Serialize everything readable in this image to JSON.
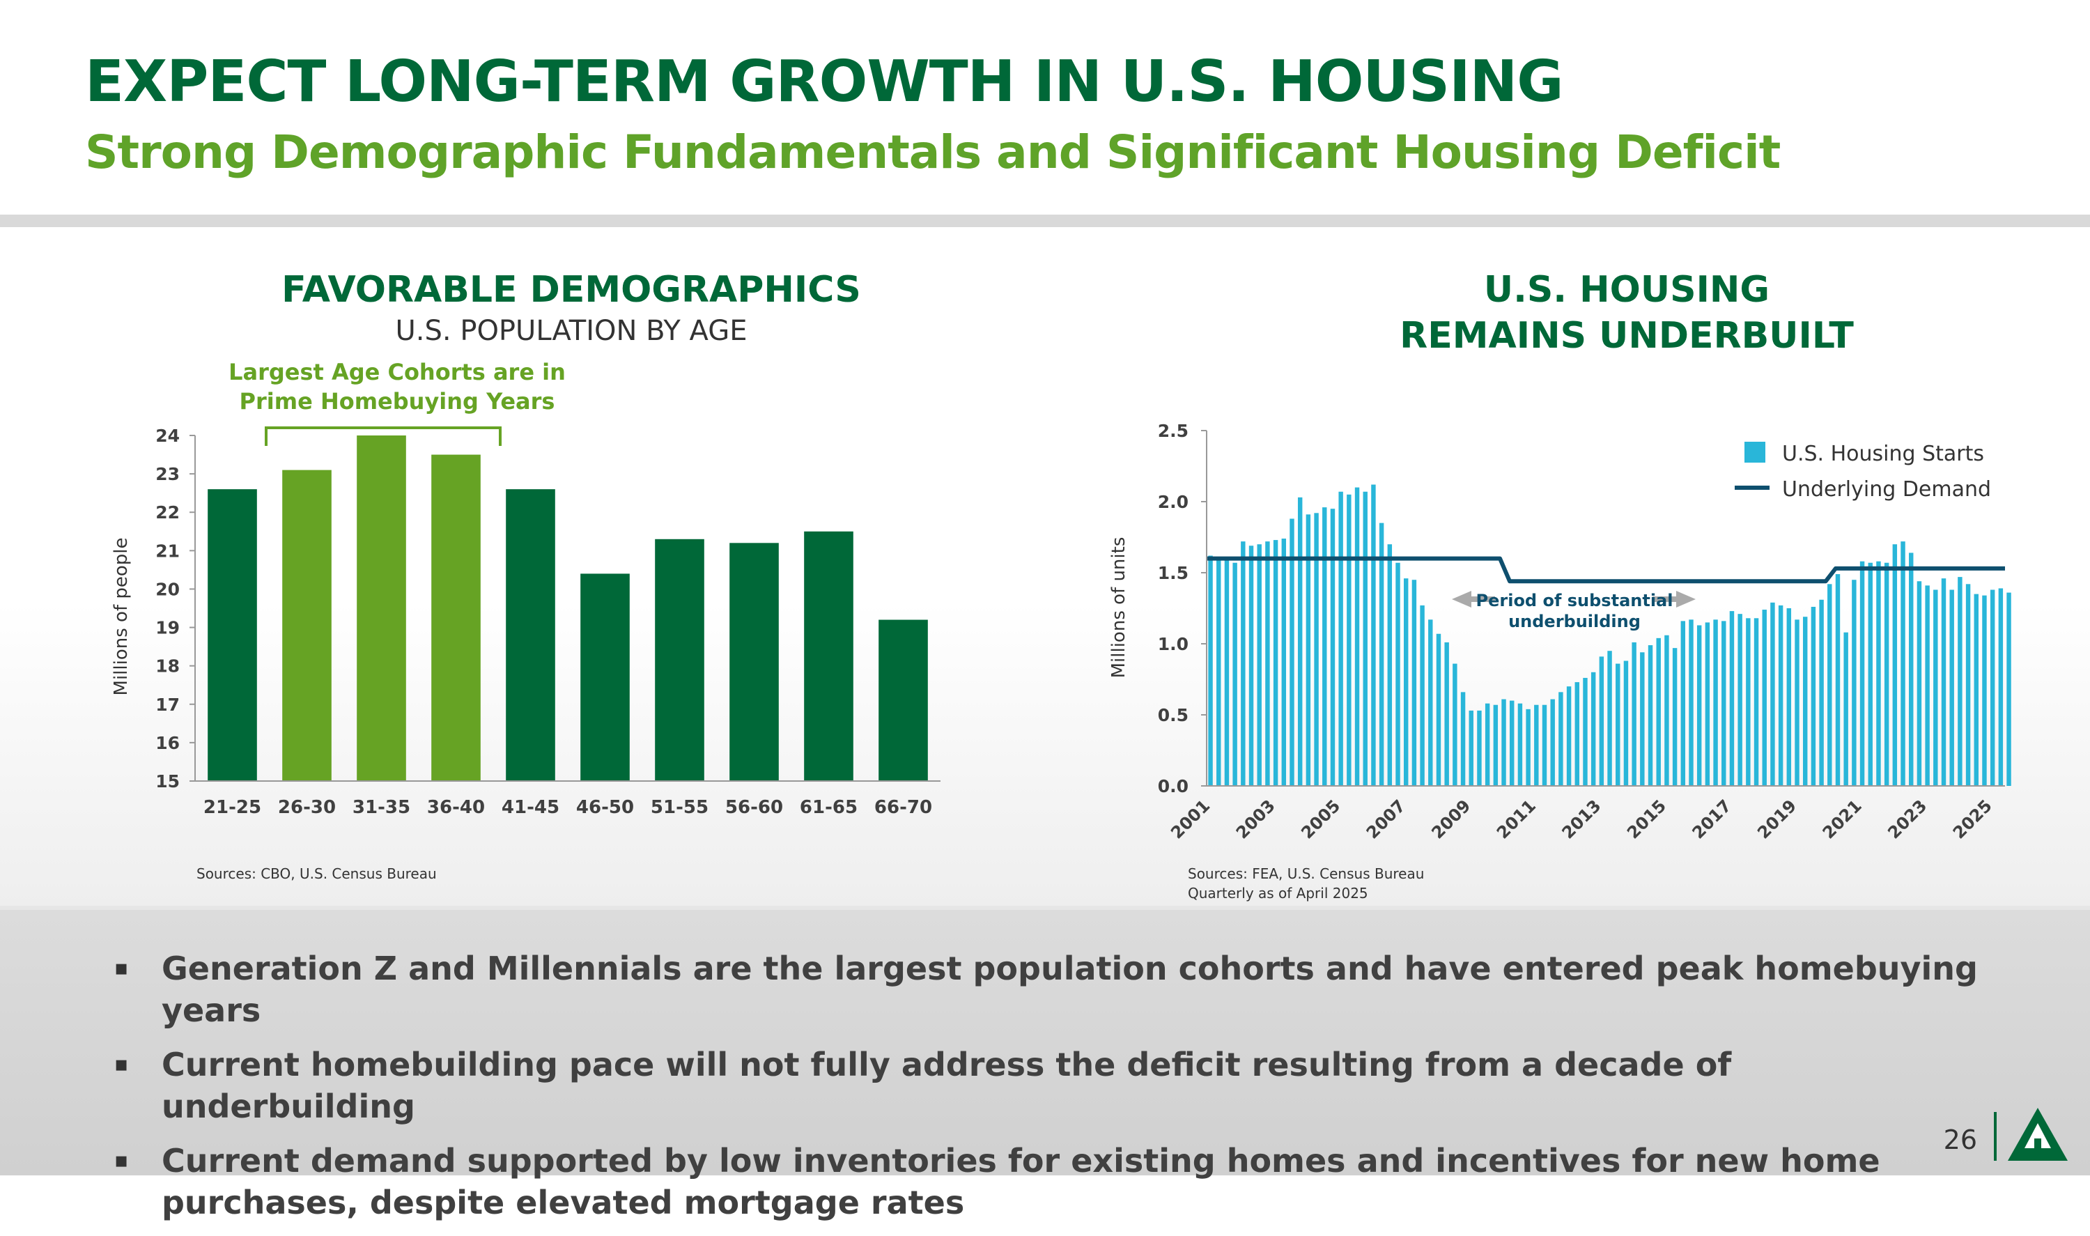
{
  "header": {
    "title": "EXPECT LONG-TERM GROWTH IN U.S. HOUSING",
    "subtitle": "Strong Demographic Fundamentals and Significant Housing Deficit"
  },
  "left_panel": {
    "title": "FAVORABLE DEMOGRAPHICS",
    "subtitle": "U.S. POPULATION BY AGE",
    "annotation_line1": "Largest Age Cohorts are in",
    "annotation_line2": "Prime Homebuying Years",
    "source": "Sources: CBO, U.S. Census Bureau"
  },
  "right_panel": {
    "title_line1": "U.S. HOUSING",
    "title_line2": "REMAINS UNDERBUILT",
    "annotation_line1": "Period of substantial",
    "annotation_line2": "underbuilding",
    "source_line1": "Sources: FEA, U.S. Census Bureau",
    "source_line2": "Quarterly as of April 2025"
  },
  "bullets": [
    "Generation Z and Millennials are the largest population cohorts and have entered peak homebuying years",
    "Current homebuilding pace will not fully address the deficit resulting from a decade of underbuilding",
    "Current demand supported by low inventories for existing homes and incentives for new home purchases, despite elevated mortgage rates"
  ],
  "bullet_marker": "▪",
  "page_number": "26",
  "colors": {
    "dark_green": "#006838",
    "light_green": "#66a324",
    "housing_starts": "#29b6d9",
    "underlying_demand": "#0e4f6e"
  },
  "chart_data": [
    {
      "type": "bar",
      "categories": [
        "21-25",
        "26-30",
        "31-35",
        "36-40",
        "41-45",
        "46-50",
        "51-55",
        "56-60",
        "61-65",
        "66-70"
      ],
      "values": [
        22.6,
        23.1,
        24.0,
        23.5,
        22.6,
        20.4,
        21.3,
        21.2,
        21.5,
        19.2
      ],
      "highlighted": [
        false,
        true,
        true,
        true,
        false,
        false,
        false,
        false,
        false,
        false
      ],
      "ylabel": "Millions of people",
      "ylim": [
        15,
        24
      ],
      "yticks": [
        15,
        16,
        17,
        18,
        19,
        20,
        21,
        22,
        23,
        24
      ]
    },
    {
      "type": "bar",
      "x_start": 2001.0,
      "x_step": 0.25,
      "xlim": [
        2001,
        2025.5
      ],
      "xticks": [
        "2001",
        "2003",
        "2005",
        "2007",
        "2009",
        "2011",
        "2013",
        "2015",
        "2017",
        "2019",
        "2021",
        "2023",
        "2025"
      ],
      "ylabel": "Millions of units",
      "ylim": [
        0.0,
        2.5
      ],
      "yticks": [
        "0.0",
        "0.5",
        "1.0",
        "1.5",
        "2.0",
        "2.5"
      ],
      "legend_position": "top-right",
      "series": [
        {
          "name": "U.S. Housing Starts",
          "type": "bar",
          "values": [
            1.62,
            1.6,
            1.6,
            1.57,
            1.72,
            1.69,
            1.7,
            1.72,
            1.73,
            1.74,
            1.88,
            2.03,
            1.91,
            1.92,
            1.96,
            1.95,
            2.07,
            2.05,
            2.1,
            2.07,
            2.12,
            1.85,
            1.7,
            1.57,
            1.46,
            1.45,
            1.27,
            1.17,
            1.07,
            1.01,
            0.86,
            0.66,
            0.53,
            0.53,
            0.58,
            0.57,
            0.61,
            0.6,
            0.58,
            0.54,
            0.57,
            0.57,
            0.61,
            0.66,
            0.7,
            0.73,
            0.76,
            0.8,
            0.91,
            0.95,
            0.86,
            0.88,
            1.01,
            0.94,
            0.99,
            1.04,
            1.06,
            0.97,
            1.16,
            1.17,
            1.13,
            1.15,
            1.17,
            1.16,
            1.23,
            1.21,
            1.18,
            1.18,
            1.24,
            1.29,
            1.27,
            1.25,
            1.17,
            1.19,
            1.26,
            1.31,
            1.42,
            1.49,
            1.08,
            1.45,
            1.58,
            1.57,
            1.58,
            1.57,
            1.7,
            1.72,
            1.64,
            1.44,
            1.41,
            1.38,
            1.46,
            1.38,
            1.47,
            1.42,
            1.35,
            1.34,
            1.38,
            1.39,
            1.36
          ]
        },
        {
          "name": "Underlying Demand",
          "type": "line",
          "points": [
            [
              2001,
              1.6
            ],
            [
              2010,
              1.6
            ],
            [
              2010.3,
              1.44
            ],
            [
              2020,
              1.44
            ],
            [
              2020.3,
              1.53
            ],
            [
              2025.5,
              1.53
            ]
          ]
        }
      ]
    }
  ]
}
